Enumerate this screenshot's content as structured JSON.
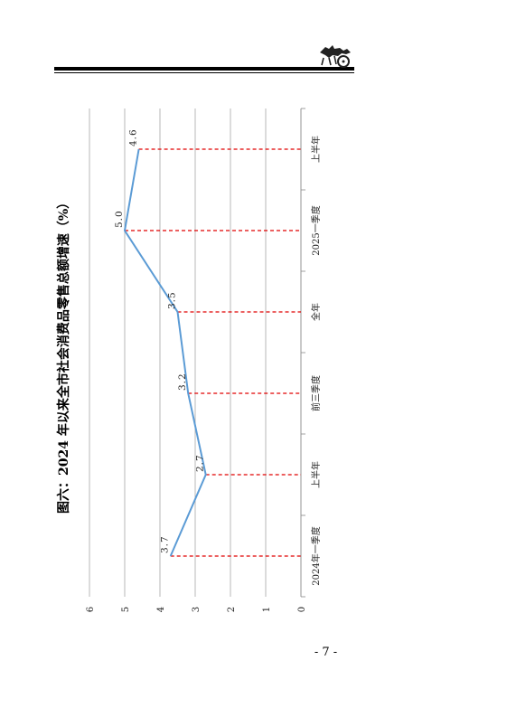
{
  "page": {
    "number": "- 7 -"
  },
  "chart_data": {
    "type": "line",
    "title": "图六：2024 年以来全市社会消费品零售总额增速（%）",
    "categories": [
      "2024年一季度",
      "上半年",
      "前三季度",
      "全年",
      "2025一季度",
      "上半年"
    ],
    "series": [
      {
        "values": [
          3.7,
          2.7,
          3.2,
          3.5,
          5.0,
          4.6
        ],
        "labels": [
          "3.7",
          "2.7",
          "3.2",
          "3.5",
          "5.0",
          "4.6"
        ]
      }
    ],
    "ylim": [
      0,
      6
    ],
    "yticks": [
      "0",
      "1",
      "2",
      "3",
      "4",
      "5",
      "6"
    ],
    "grid": true,
    "orientation": "rotated-90",
    "colors": {
      "line": "#5b9bd5",
      "drop_lines": "#e00000",
      "grid": "#a6a6a6"
    }
  }
}
